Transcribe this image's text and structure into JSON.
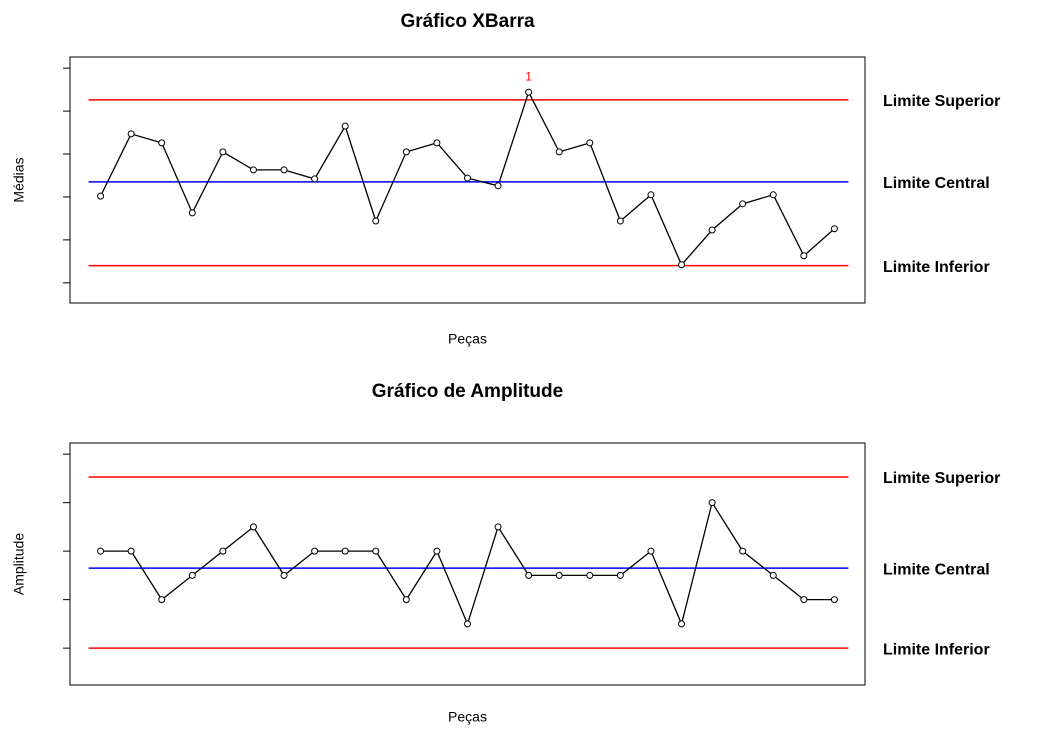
{
  "chart_data": [
    {
      "type": "line",
      "title": "Gráfico XBarra",
      "xlabel": "Peças",
      "ylabel": "Médias",
      "x": [
        1,
        2,
        3,
        4,
        5,
        6,
        7,
        8,
        9,
        10,
        11,
        12,
        13,
        14,
        15,
        16,
        17,
        18,
        19,
        20,
        21,
        22,
        23,
        24,
        25
      ],
      "series": [
        {
          "color": "#000000",
          "values": [
            2.02,
            3.47,
            3.26,
            1.63,
            3.05,
            2.63,
            2.63,
            2.42,
            3.65,
            1.44,
            3.05,
            3.26,
            2.44,
            2.26,
            4.44,
            3.05,
            3.26,
            1.44,
            2.05,
            0.42,
            1.23,
            1.84,
            2.05,
            0.63,
            1.26
          ]
        }
      ],
      "limits": [
        {
          "name": "Limite Superior",
          "value": 4.26,
          "color": "#ff0000"
        },
        {
          "name": "Limite Central",
          "value": 2.35,
          "color": "#0000ff"
        },
        {
          "name": "Limite Inferior",
          "value": 0.4,
          "color": "#ff0000"
        }
      ],
      "annotations": [
        {
          "text": "1",
          "x": 15,
          "y": 4.44,
          "color": "#ff0000"
        }
      ],
      "xlim": [
        0,
        26
      ],
      "ylim": [
        -0.47,
        5.26
      ],
      "yticks": [
        0,
        1,
        2,
        3,
        4,
        5
      ]
    },
    {
      "type": "line",
      "title": "Gráfico de Amplitude",
      "xlabel": "Peças",
      "ylabel": "Amplitude",
      "x": [
        1,
        2,
        3,
        4,
        5,
        6,
        7,
        8,
        9,
        10,
        11,
        12,
        13,
        14,
        15,
        16,
        17,
        18,
        19,
        20,
        21,
        22,
        23,
        24,
        25
      ],
      "series": [
        {
          "color": "#000000",
          "values": [
            2,
            2,
            1,
            1.5,
            2,
            2.5,
            1.5,
            2,
            2,
            2,
            1,
            2,
            0.5,
            2.5,
            1.5,
            1.5,
            1.5,
            1.5,
            2,
            0.5,
            3,
            2,
            1.5,
            1,
            1
          ]
        }
      ],
      "limits": [
        {
          "name": "Limite Superior",
          "value": 3.53,
          "color": "#ff0000"
        },
        {
          "name": "Limite Central",
          "value": 1.65,
          "color": "#0000ff"
        },
        {
          "name": "Limite Inferior",
          "value": 0,
          "color": "#ff0000"
        }
      ],
      "xlim": [
        0,
        26
      ],
      "ylim": [
        -0.76,
        4.23
      ],
      "yticks": [
        0,
        1,
        2,
        3,
        4
      ]
    }
  ]
}
